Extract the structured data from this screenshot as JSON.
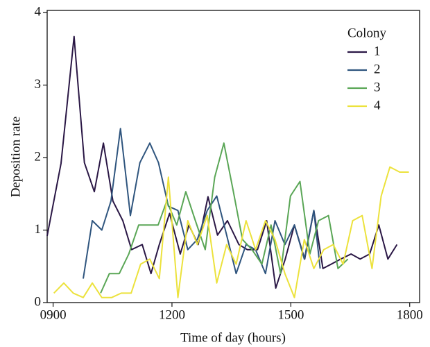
{
  "chart_data": {
    "type": "line",
    "xlabel": "Time of day (hours)",
    "ylabel": "Deposition rate",
    "legend_title": "Colony",
    "legend_position": "upper right",
    "xlim": [
      8.85,
      18.25
    ],
    "ylim": [
      0,
      4.03
    ],
    "xticks": [
      {
        "value": 9,
        "label": "0900"
      },
      {
        "value": 12,
        "label": "1200"
      },
      {
        "value": 15,
        "label": "1500"
      },
      {
        "value": 18,
        "label": "1800"
      }
    ],
    "yticks": [
      0,
      1,
      2,
      3,
      4
    ],
    "series": [
      {
        "name": "1",
        "color": "#2a1745",
        "x": [
          8.85,
          9.2,
          9.53,
          9.79,
          10.04,
          10.27,
          10.51,
          10.76,
          10.98,
          11.25,
          11.47,
          11.68,
          11.94,
          12.21,
          12.43,
          12.66,
          12.91,
          13.15,
          13.4,
          13.69,
          13.9,
          14.16,
          14.39,
          14.62,
          14.86,
          15.09,
          15.35,
          15.58,
          15.81,
          16.02,
          16.26,
          16.52,
          16.75,
          16.99,
          17.22,
          17.45,
          17.68
        ],
        "values": [
          0.92,
          1.92,
          3.67,
          1.93,
          1.53,
          2.2,
          1.4,
          1.13,
          0.73,
          0.8,
          0.4,
          0.8,
          1.23,
          0.67,
          1.07,
          0.8,
          1.46,
          0.93,
          1.13,
          0.8,
          0.73,
          0.73,
          1.13,
          0.2,
          0.6,
          1.07,
          0.6,
          1.27,
          0.47,
          0.53,
          0.6,
          0.67,
          0.6,
          0.67,
          1.07,
          0.6,
          0.8
        ]
      },
      {
        "name": "2",
        "color": "#2f557e",
        "x": [
          9.76,
          9.99,
          10.23,
          10.46,
          10.7,
          10.95,
          11.19,
          11.44,
          11.66,
          11.91,
          12.15,
          12.4,
          12.64,
          12.89,
          13.13,
          13.38,
          13.62,
          13.87,
          14.11,
          14.36,
          14.6,
          14.85,
          15.09,
          15.34,
          15.58,
          15.74
        ],
        "values": [
          0.33,
          1.13,
          1.0,
          1.4,
          2.4,
          1.2,
          1.93,
          2.2,
          1.93,
          1.33,
          1.27,
          0.73,
          0.87,
          1.27,
          1.47,
          0.93,
          0.4,
          0.8,
          0.73,
          0.4,
          1.13,
          0.8,
          1.07,
          0.6,
          1.27,
          0.47
        ]
      },
      {
        "name": "3",
        "color": "#5aa656",
        "x": [
          10.2,
          10.42,
          10.67,
          10.91,
          11.16,
          11.4,
          11.65,
          11.87,
          12.12,
          12.35,
          12.59,
          12.84,
          13.08,
          13.31,
          13.55,
          13.78,
          14.02,
          14.27,
          14.5,
          14.74,
          14.99,
          15.23,
          15.48,
          15.7,
          15.95,
          16.19,
          16.44
        ],
        "values": [
          0.13,
          0.4,
          0.4,
          0.67,
          1.07,
          1.07,
          1.07,
          1.4,
          1.07,
          1.53,
          1.13,
          0.73,
          1.73,
          2.2,
          1.53,
          0.87,
          0.73,
          0.53,
          1.07,
          0.4,
          1.47,
          1.67,
          0.67,
          1.13,
          1.2,
          0.47,
          0.6
        ]
      },
      {
        "name": "4",
        "color": "#ece23c",
        "x": [
          9.02,
          9.27,
          9.51,
          9.76,
          9.99,
          10.23,
          10.48,
          10.72,
          10.97,
          11.21,
          11.44,
          11.68,
          11.91,
          12.15,
          12.4,
          12.64,
          12.89,
          13.13,
          13.38,
          13.62,
          13.87,
          14.11,
          14.36,
          14.6,
          14.85,
          15.09,
          15.34,
          15.58,
          15.83,
          16.07,
          16.32,
          16.56,
          16.8,
          17.05,
          17.28,
          17.5,
          17.75,
          17.98
        ],
        "values": [
          0.13,
          0.27,
          0.13,
          0.07,
          0.27,
          0.07,
          0.07,
          0.13,
          0.13,
          0.53,
          0.6,
          0.33,
          1.73,
          0.07,
          1.13,
          0.8,
          1.2,
          0.27,
          0.8,
          0.53,
          1.13,
          0.73,
          1.13,
          0.87,
          0.4,
          0.07,
          0.87,
          0.47,
          0.73,
          0.8,
          0.53,
          1.13,
          1.2,
          0.47,
          1.47,
          1.87,
          1.8,
          1.8
        ]
      }
    ]
  }
}
